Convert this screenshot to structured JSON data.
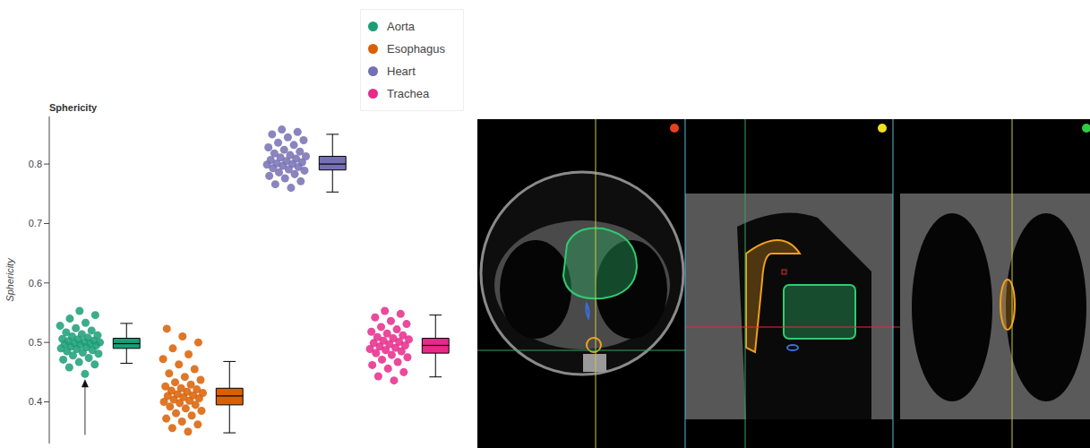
{
  "chart_data": {
    "type": "box",
    "title": "Sphericity",
    "y_label": "Sphericity",
    "ylim": [
      0.33,
      0.88
    ],
    "yticks": [
      0.4,
      0.5,
      0.6,
      0.7,
      0.8
    ],
    "tick_labels": "y",
    "legend": "top-right",
    "marker": "circle",
    "series": [
      {
        "name": "Aorta",
        "color": "#1b9e77",
        "values": [
          0.447,
          0.458,
          0.463,
          0.467,
          0.471,
          0.474,
          0.478,
          0.481,
          0.483,
          0.485,
          0.487,
          0.489,
          0.49,
          0.492,
          0.493,
          0.495,
          0.496,
          0.497,
          0.498,
          0.499,
          0.5,
          0.501,
          0.502,
          0.503,
          0.505,
          0.506,
          0.508,
          0.51,
          0.512,
          0.514,
          0.517,
          0.52,
          0.524,
          0.528,
          0.533,
          0.54,
          0.546,
          0.553
        ],
        "whisker_low": 0.465,
        "q1": 0.49,
        "median": 0.498,
        "q3": 0.507,
        "whisker_high": 0.532
      },
      {
        "name": "Esophagus",
        "color": "#d95f02",
        "values": [
          0.35,
          0.356,
          0.362,
          0.367,
          0.372,
          0.377,
          0.381,
          0.385,
          0.389,
          0.392,
          0.395,
          0.398,
          0.4,
          0.402,
          0.404,
          0.406,
          0.408,
          0.41,
          0.411,
          0.413,
          0.415,
          0.417,
          0.419,
          0.421,
          0.423,
          0.426,
          0.429,
          0.433,
          0.437,
          0.442,
          0.448,
          0.455,
          0.463,
          0.472,
          0.48,
          0.49,
          0.5,
          0.51,
          0.523
        ],
        "whisker_low": 0.348,
        "q1": 0.395,
        "median": 0.41,
        "q3": 0.423,
        "whisker_high": 0.468
      },
      {
        "name": "Heart",
        "color": "#7570b3",
        "values": [
          0.76,
          0.766,
          0.771,
          0.776,
          0.78,
          0.783,
          0.786,
          0.789,
          0.791,
          0.793,
          0.795,
          0.797,
          0.799,
          0.8,
          0.801,
          0.803,
          0.805,
          0.807,
          0.809,
          0.811,
          0.813,
          0.815,
          0.818,
          0.821,
          0.824,
          0.828,
          0.832,
          0.836,
          0.84,
          0.845,
          0.85,
          0.854,
          0.858
        ],
        "whisker_low": 0.753,
        "q1": 0.79,
        "median": 0.8,
        "q3": 0.813,
        "whisker_high": 0.85
      },
      {
        "name": "Trachea",
        "color": "#e7298a",
        "values": [
          0.436,
          0.443,
          0.45,
          0.456,
          0.462,
          0.467,
          0.471,
          0.475,
          0.479,
          0.482,
          0.485,
          0.487,
          0.489,
          0.491,
          0.493,
          0.495,
          0.497,
          0.499,
          0.501,
          0.503,
          0.505,
          0.507,
          0.509,
          0.512,
          0.515,
          0.518,
          0.522,
          0.526,
          0.531,
          0.536,
          0.542,
          0.548,
          0.553
        ],
        "whisker_low": 0.442,
        "q1": 0.482,
        "median": 0.495,
        "q3": 0.507,
        "whisker_high": 0.546
      }
    ]
  }
}
